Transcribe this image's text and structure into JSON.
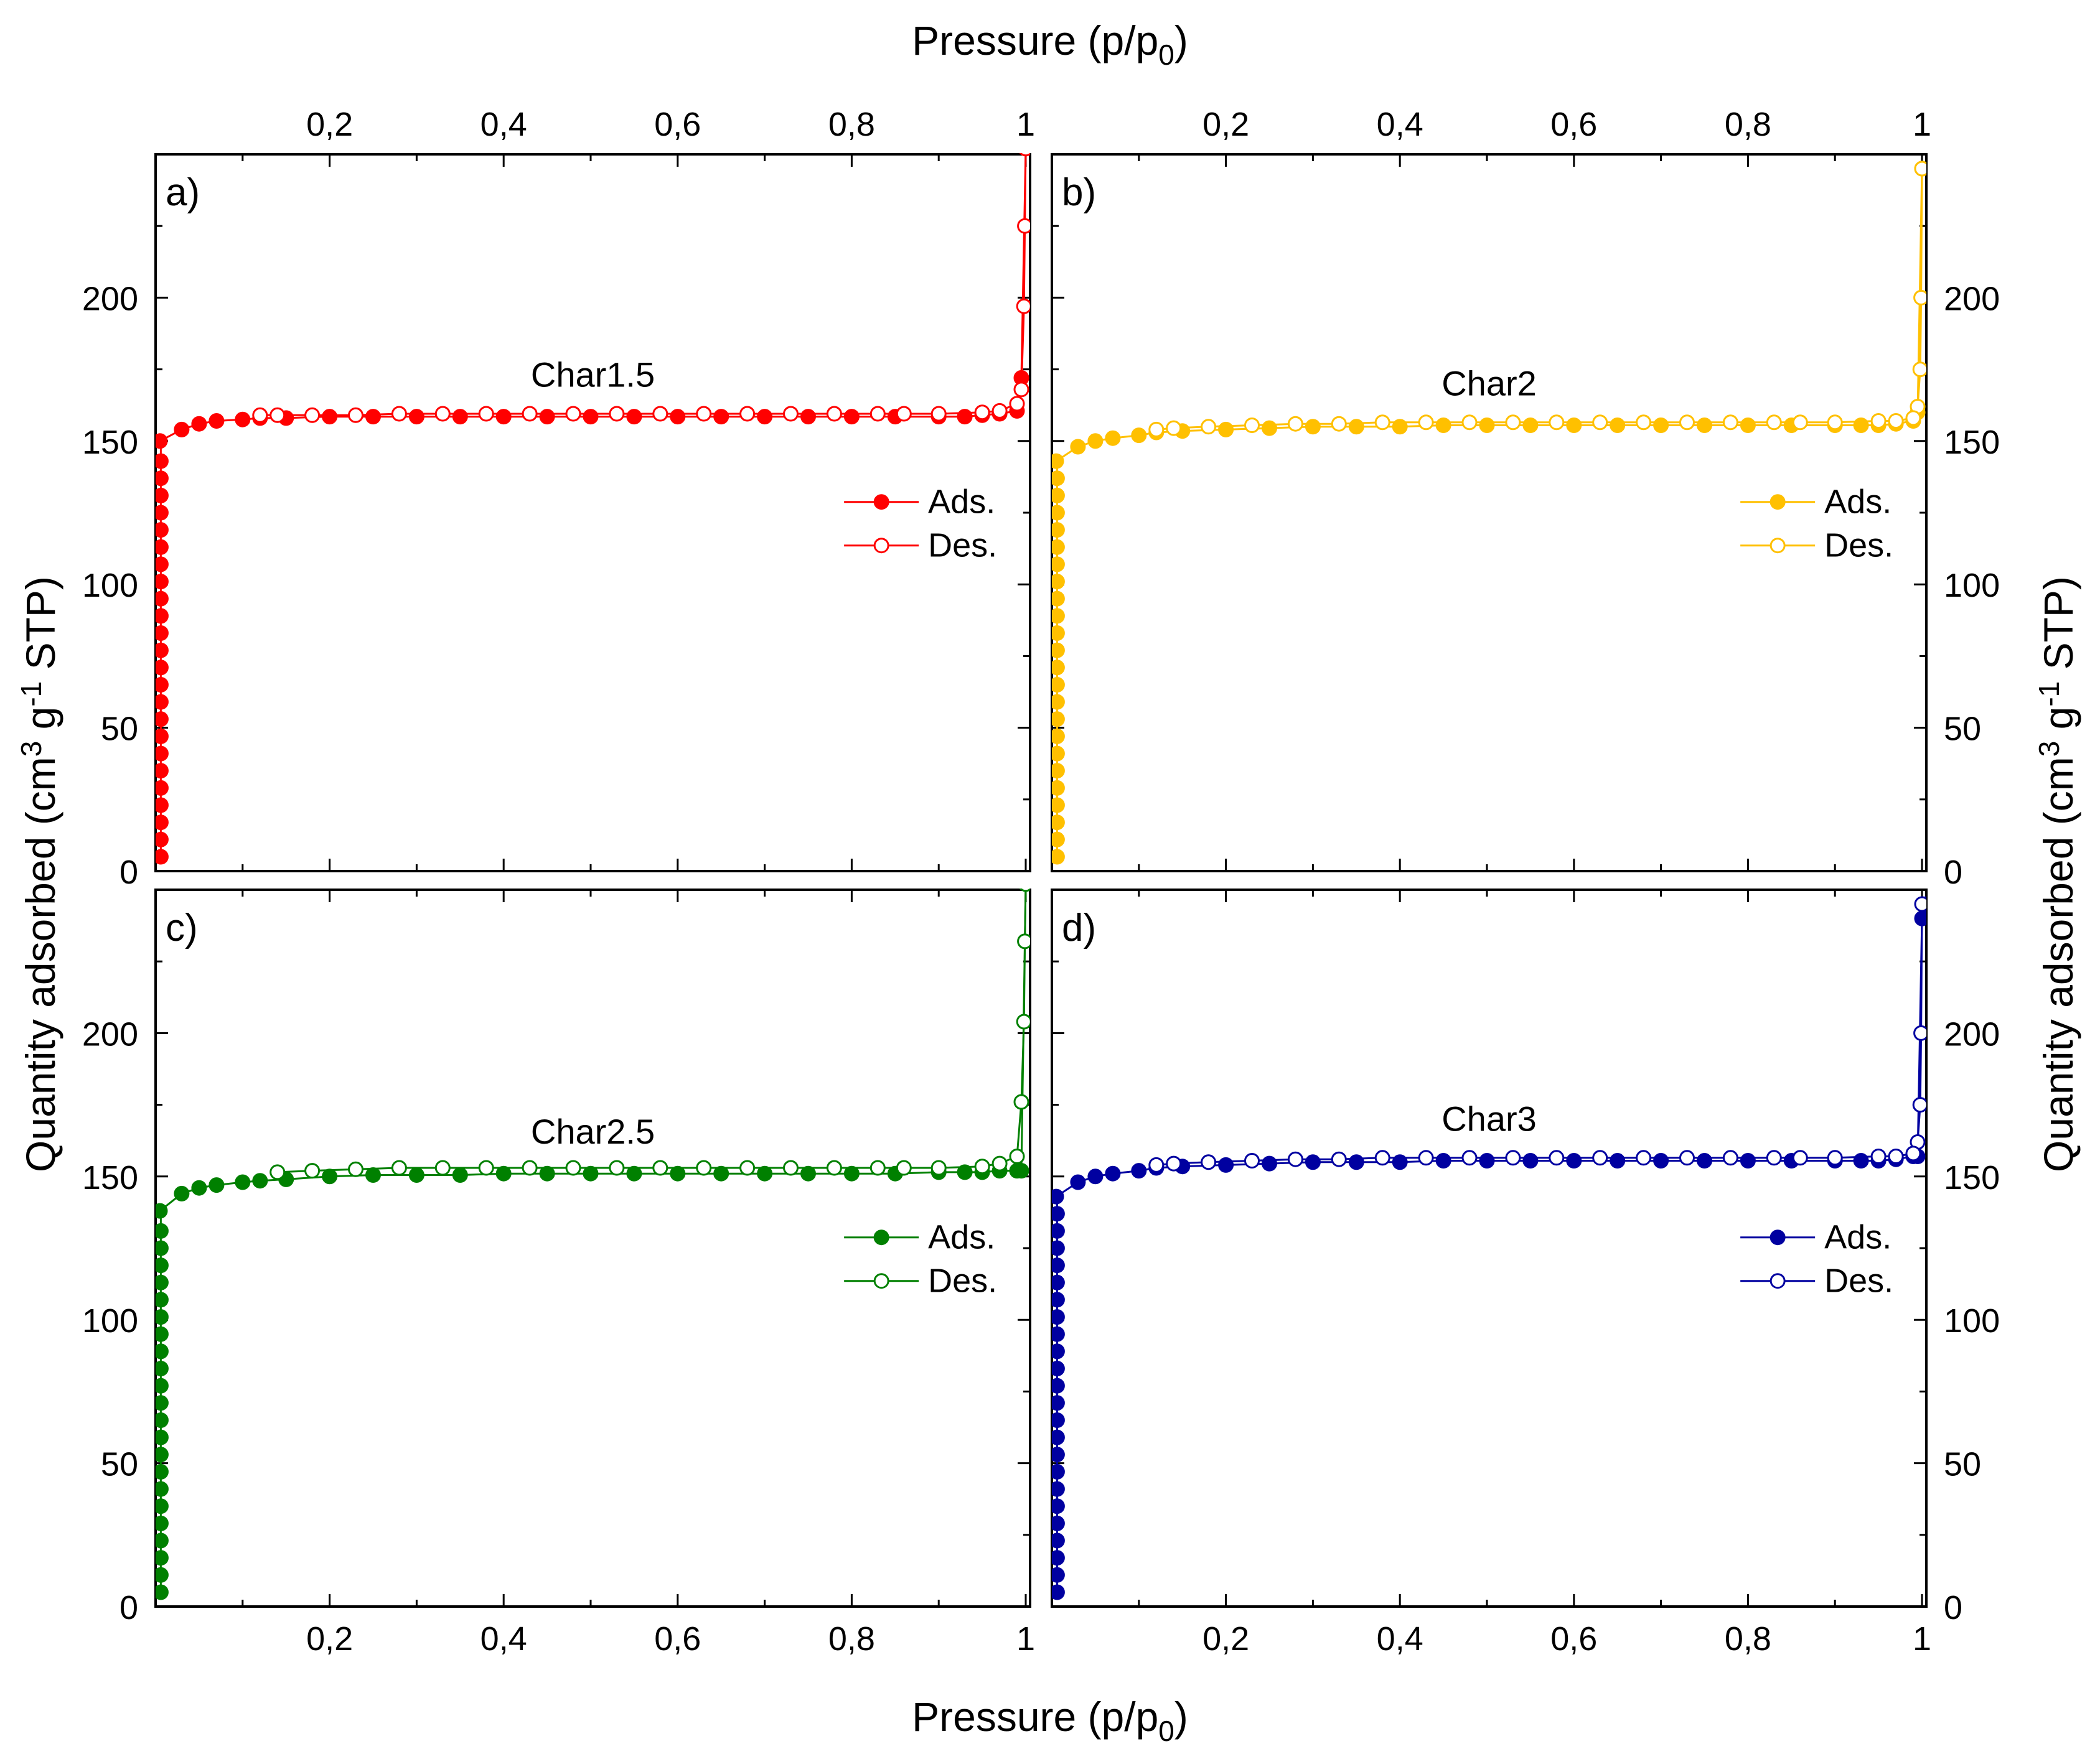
{
  "figure": {
    "top_axis_label": "Pressure (p/p",
    "top_axis_sub": "0",
    "bottom_axis_label": "Pressure (p/p",
    "bottom_axis_sub": "0",
    "left_axis_label_a": "Quantity adsorbed (cm",
    "left_axis_label_b": "3",
    "left_axis_label_c": " g",
    "left_axis_label_d": "-1",
    "left_axis_label_e": " STP)",
    "right_axis_label_a": "Quantity adsorbed (cm",
    "right_axis_label_b": "3",
    "right_axis_label_c": " g",
    "right_axis_label_d": "-1",
    "right_axis_label_e": " STP)",
    "x_ticks": [
      "0,2",
      "0,4",
      "0,6",
      "0,8",
      "1"
    ],
    "y_ticks": [
      "0",
      "50",
      "100",
      "150",
      "200"
    ],
    "colors": {
      "a": "#ff0000",
      "b": "#ffc000",
      "c": "#008000",
      "d": "#0000a0"
    }
  },
  "chart_data": [
    {
      "type": "line",
      "panel": "a",
      "panel_label": "a)",
      "sample": "Char1.5",
      "xlabel": "Pressure (p/p0)",
      "ylabel": "Quantity adsorbed (cm3 g-1 STP)",
      "xlim": [
        0,
        1.005
      ],
      "ylim": [
        0,
        250
      ],
      "legend": [
        "Ads.",
        "Des."
      ],
      "legend_position": "right",
      "series": [
        {
          "name": "Ads.",
          "marker": "filled-circle",
          "x": [
            0.005,
            0.03,
            0.05,
            0.07,
            0.1,
            0.12,
            0.15,
            0.2,
            0.25,
            0.3,
            0.35,
            0.4,
            0.45,
            0.5,
            0.55,
            0.6,
            0.65,
            0.7,
            0.75,
            0.8,
            0.85,
            0.9,
            0.93,
            0.95,
            0.97,
            0.99,
            0.995,
            1.0
          ],
          "y": [
            150,
            154,
            156,
            157,
            157.5,
            158,
            158,
            158.5,
            158.5,
            158.5,
            158.5,
            158.5,
            158.5,
            158.5,
            158.5,
            158.5,
            158.5,
            158.5,
            158.5,
            158.5,
            158.5,
            158.5,
            158.5,
            159,
            159.5,
            160.5,
            172,
            252
          ]
        },
        {
          "name": "Des.",
          "marker": "open-circle",
          "x": [
            1.0,
            0.999,
            0.998,
            0.995,
            0.99,
            0.97,
            0.95,
            0.9,
            0.86,
            0.83,
            0.78,
            0.73,
            0.68,
            0.63,
            0.58,
            0.53,
            0.48,
            0.43,
            0.38,
            0.33,
            0.28,
            0.23,
            0.18,
            0.14,
            0.12
          ],
          "y": [
            252,
            225,
            197,
            168,
            163,
            160.5,
            160,
            159.5,
            159.5,
            159.5,
            159.5,
            159.5,
            159.5,
            159.5,
            159.5,
            159.5,
            159.5,
            159.5,
            159.5,
            159.5,
            159.5,
            159,
            159,
            159,
            159
          ]
        }
      ]
    },
    {
      "type": "line",
      "panel": "b",
      "panel_label": "b)",
      "sample": "Char2",
      "xlabel": "Pressure (p/p0)",
      "ylabel": "Quantity adsorbed (cm3 g-1 STP)",
      "xlim": [
        0,
        1.005
      ],
      "ylim": [
        0,
        250
      ],
      "legend": [
        "Ads.",
        "Des."
      ],
      "legend_position": "right",
      "series": [
        {
          "name": "Ads.",
          "marker": "filled-circle",
          "x": [
            0.005,
            0.03,
            0.05,
            0.07,
            0.1,
            0.12,
            0.15,
            0.2,
            0.25,
            0.3,
            0.35,
            0.4,
            0.45,
            0.5,
            0.55,
            0.6,
            0.65,
            0.7,
            0.75,
            0.8,
            0.85,
            0.9,
            0.93,
            0.95,
            0.97,
            0.99,
            0.995,
            1.0
          ],
          "y": [
            143,
            148,
            150,
            151,
            152,
            153,
            153.5,
            154,
            154.5,
            155,
            155,
            155,
            155.5,
            155.5,
            155.5,
            155.5,
            155.5,
            155.5,
            155.5,
            155.5,
            155.5,
            155.5,
            155.5,
            155.5,
            156,
            157,
            160,
            245
          ]
        },
        {
          "name": "Des.",
          "marker": "open-circle",
          "x": [
            1.0,
            0.999,
            0.998,
            0.995,
            0.99,
            0.97,
            0.95,
            0.9,
            0.86,
            0.83,
            0.78,
            0.73,
            0.68,
            0.63,
            0.58,
            0.53,
            0.48,
            0.43,
            0.38,
            0.33,
            0.28,
            0.23,
            0.18,
            0.14,
            0.12
          ],
          "y": [
            245,
            200,
            175,
            162,
            158,
            157,
            157,
            156.5,
            156.5,
            156.5,
            156.5,
            156.5,
            156.5,
            156.5,
            156.5,
            156.5,
            156.5,
            156.5,
            156.5,
            156,
            156,
            155.5,
            155,
            154.5,
            154
          ]
        }
      ]
    },
    {
      "type": "line",
      "panel": "c",
      "panel_label": "c)",
      "sample": "Char2.5",
      "xlabel": "Pressure (p/p0)",
      "ylabel": "Quantity adsorbed (cm3 g-1 STP)",
      "xlim": [
        0,
        1.005
      ],
      "ylim": [
        0,
        250
      ],
      "legend": [
        "Ads.",
        "Des."
      ],
      "legend_position": "right",
      "series": [
        {
          "name": "Ads.",
          "marker": "filled-circle",
          "x": [
            0.005,
            0.03,
            0.05,
            0.07,
            0.1,
            0.12,
            0.15,
            0.2,
            0.25,
            0.3,
            0.35,
            0.4,
            0.45,
            0.5,
            0.55,
            0.6,
            0.65,
            0.7,
            0.75,
            0.8,
            0.85,
            0.9,
            0.93,
            0.95,
            0.97,
            0.99,
            0.995,
            1.0
          ],
          "y": [
            138,
            144,
            146,
            147,
            148,
            148.5,
            149,
            150,
            150.5,
            150.5,
            150.5,
            151,
            151,
            151,
            151,
            151,
            151,
            151,
            151,
            151,
            151,
            151.5,
            151.5,
            151.5,
            152,
            152,
            152,
            252
          ]
        },
        {
          "name": "Des.",
          "marker": "open-circle",
          "x": [
            1.0,
            0.999,
            0.998,
            0.995,
            0.99,
            0.97,
            0.95,
            0.9,
            0.86,
            0.83,
            0.78,
            0.73,
            0.68,
            0.63,
            0.58,
            0.53,
            0.48,
            0.43,
            0.38,
            0.33,
            0.28,
            0.23,
            0.18,
            0.14
          ],
          "y": [
            252,
            232,
            204,
            176,
            157,
            154.5,
            153.5,
            153,
            153,
            153,
            153,
            153,
            153,
            153,
            153,
            153,
            153,
            153,
            153,
            153,
            153,
            152.5,
            152,
            151.5
          ]
        }
      ]
    },
    {
      "type": "line",
      "panel": "d",
      "panel_label": "d)",
      "sample": "Char3",
      "xlabel": "Pressure (p/p0)",
      "ylabel": "Quantity adsorbed (cm3 g-1 STP)",
      "xlim": [
        0,
        1.005
      ],
      "ylim": [
        0,
        250
      ],
      "legend": [
        "Ads.",
        "Des."
      ],
      "legend_position": "right",
      "series": [
        {
          "name": "Ads.",
          "marker": "filled-circle",
          "x": [
            0.005,
            0.03,
            0.05,
            0.07,
            0.1,
            0.12,
            0.15,
            0.2,
            0.25,
            0.3,
            0.35,
            0.4,
            0.45,
            0.5,
            0.55,
            0.6,
            0.65,
            0.7,
            0.75,
            0.8,
            0.85,
            0.9,
            0.93,
            0.95,
            0.97,
            0.99,
            0.995,
            1.0,
            1.005
          ],
          "y": [
            143,
            148,
            150,
            151,
            152,
            153,
            153.5,
            154,
            154.5,
            155,
            155,
            155,
            155.5,
            155.5,
            155.5,
            155.5,
            155.5,
            155.5,
            155.5,
            155.5,
            155.5,
            155.5,
            155.5,
            155.5,
            156,
            157,
            157,
            240,
            245
          ]
        },
        {
          "name": "Des.",
          "marker": "open-circle",
          "x": [
            1.0,
            0.999,
            0.998,
            0.995,
            0.99,
            0.97,
            0.95,
            0.9,
            0.86,
            0.83,
            0.78,
            0.73,
            0.68,
            0.63,
            0.58,
            0.53,
            0.48,
            0.43,
            0.38,
            0.33,
            0.28,
            0.23,
            0.18,
            0.14,
            0.12
          ],
          "y": [
            245,
            200,
            175,
            162,
            158,
            157,
            157,
            156.5,
            156.5,
            156.5,
            156.5,
            156.5,
            156.5,
            156.5,
            156.5,
            156.5,
            156.5,
            156.5,
            156.5,
            156,
            156,
            155.5,
            155,
            154.5,
            154
          ]
        }
      ]
    }
  ]
}
